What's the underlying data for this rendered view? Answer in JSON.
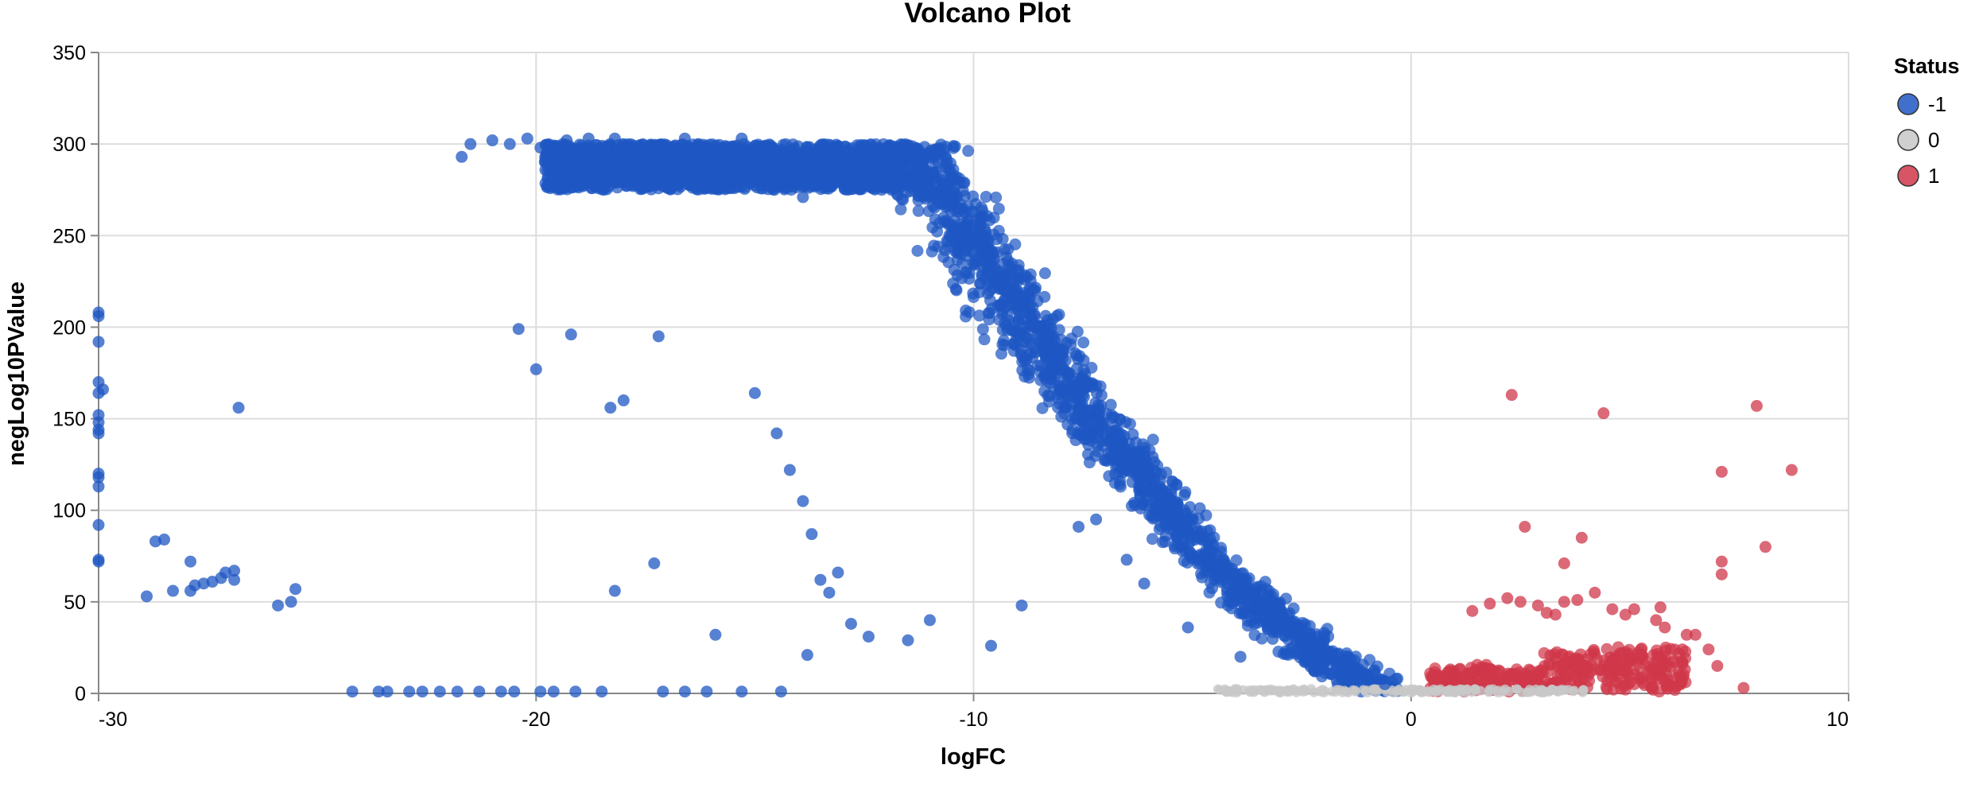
{
  "chart_data": {
    "type": "scatter",
    "title": "Volcano Plot",
    "xlabel": "logFC",
    "ylabel": "negLog10PValue",
    "xlim": [
      -30,
      10
    ],
    "ylim": [
      0,
      350
    ],
    "x_ticks": [
      "-30",
      "-20",
      "-10",
      "0",
      "10"
    ],
    "y_ticks": [
      "0",
      "50",
      "100",
      "150",
      "200",
      "250",
      "300",
      "350"
    ],
    "grid": true,
    "legend": {
      "title": "Status",
      "placement": "top-right",
      "entries": [
        {
          "label": "-1",
          "color": "#1f57c3"
        },
        {
          "label": "0",
          "color": "#c8c8c8"
        },
        {
          "label": "1",
          "color": "#d0374a"
        }
      ]
    },
    "series": [
      {
        "name": "-1",
        "color": "#1f57c3",
        "points": [
          [
            -30,
            208
          ],
          [
            -30,
            206
          ],
          [
            -30,
            192
          ],
          [
            -30,
            170
          ],
          [
            -29.9,
            166
          ],
          [
            -30,
            164
          ],
          [
            -30,
            152
          ],
          [
            -30,
            148
          ],
          [
            -30,
            144
          ],
          [
            -30,
            142
          ],
          [
            -30,
            120
          ],
          [
            -30,
            118
          ],
          [
            -30,
            113
          ],
          [
            -30,
            92
          ],
          [
            -30,
            73
          ],
          [
            -30,
            72
          ],
          [
            -26.8,
            156
          ],
          [
            -28.7,
            83
          ],
          [
            -28.5,
            84
          ],
          [
            -27.9,
            72
          ],
          [
            -28.9,
            53
          ],
          [
            -28.3,
            56
          ],
          [
            -27.9,
            56
          ],
          [
            -27.8,
            59
          ],
          [
            -27.6,
            60
          ],
          [
            -27.4,
            61
          ],
          [
            -27.2,
            63
          ],
          [
            -27.1,
            66
          ],
          [
            -26.9,
            67
          ],
          [
            -26.9,
            62
          ],
          [
            -25.9,
            48
          ],
          [
            -25.6,
            50
          ],
          [
            -25.5,
            57
          ],
          [
            -24.2,
            1
          ],
          [
            -23.6,
            1
          ],
          [
            -23.4,
            1
          ],
          [
            -22.9,
            1
          ],
          [
            -22.6,
            1
          ],
          [
            -22.2,
            1
          ],
          [
            -21.8,
            1
          ],
          [
            -21.3,
            1
          ],
          [
            -20.8,
            1
          ],
          [
            -20.5,
            1
          ],
          [
            -19.9,
            1
          ],
          [
            -19.6,
            1
          ],
          [
            -19.1,
            1
          ],
          [
            -18.5,
            1
          ],
          [
            -17.1,
            1
          ],
          [
            -16.6,
            1
          ],
          [
            -16.1,
            1
          ],
          [
            -15.3,
            1
          ],
          [
            -18.2,
            56
          ],
          [
            -17.3,
            71
          ],
          [
            -15.9,
            32
          ],
          [
            -14.4,
            1
          ],
          [
            -21.7,
            293
          ],
          [
            -21.5,
            300
          ],
          [
            -21.0,
            302
          ],
          [
            -20.6,
            300
          ],
          [
            -20.2,
            303
          ],
          [
            -19.9,
            298
          ],
          [
            -19.6,
            290
          ],
          [
            -19.3,
            302
          ],
          [
            -18.8,
            303
          ],
          [
            -18.2,
            303
          ],
          [
            -17.4,
            298
          ],
          [
            -16.6,
            303
          ],
          [
            -16.2,
            295
          ],
          [
            -15.3,
            303
          ],
          [
            -15.2,
            290
          ],
          [
            -13.9,
            271
          ],
          [
            -20.4,
            199
          ],
          [
            -20.0,
            177
          ],
          [
            -19.2,
            196
          ],
          [
            -18.3,
            156
          ],
          [
            -18.0,
            160
          ],
          [
            -17.2,
            195
          ],
          [
            -15.0,
            164
          ],
          [
            -14.5,
            142
          ],
          [
            -14.2,
            122
          ],
          [
            -13.9,
            105
          ],
          [
            -13.7,
            87
          ],
          [
            -13.5,
            62
          ],
          [
            -13.3,
            55
          ],
          [
            -13.1,
            66
          ],
          [
            -12.8,
            38
          ],
          [
            -13.8,
            21
          ],
          [
            -12.4,
            31
          ],
          [
            -11.5,
            29
          ],
          [
            -11.0,
            40
          ],
          [
            -9.6,
            26
          ],
          [
            -8.9,
            48
          ],
          [
            -7.6,
            91
          ],
          [
            -7.2,
            95
          ],
          [
            -6.5,
            73
          ],
          [
            -6.1,
            60
          ],
          [
            -5.1,
            36
          ],
          [
            -3.9,
            20
          ],
          [
            -2.2,
            12
          ],
          [
            -1.6,
            9
          ],
          [
            -0.6,
            5
          ]
        ]
      },
      {
        "name": "1",
        "color": "#d0374a",
        "points": [
          [
            2.3,
            163
          ],
          [
            4.4,
            153
          ],
          [
            7.9,
            157
          ],
          [
            7.1,
            121
          ],
          [
            8.7,
            122
          ],
          [
            2.6,
            91
          ],
          [
            3.5,
            71
          ],
          [
            3.9,
            85
          ],
          [
            7.1,
            72
          ],
          [
            7.1,
            65
          ],
          [
            8.1,
            80
          ],
          [
            1.4,
            45
          ],
          [
            1.8,
            49
          ],
          [
            2.2,
            52
          ],
          [
            2.5,
            50
          ],
          [
            2.9,
            48
          ],
          [
            3.1,
            44
          ],
          [
            3.3,
            43
          ],
          [
            3.5,
            50
          ],
          [
            3.8,
            51
          ],
          [
            4.2,
            55
          ],
          [
            4.6,
            46
          ],
          [
            4.9,
            43
          ],
          [
            5.1,
            46
          ],
          [
            5.7,
            47
          ],
          [
            5.6,
            40
          ],
          [
            5.8,
            36
          ],
          [
            6.3,
            32
          ],
          [
            6.5,
            32
          ],
          [
            5.8,
            20
          ],
          [
            6.2,
            24
          ],
          [
            6.8,
            24
          ],
          [
            7.0,
            15
          ],
          [
            7.6,
            3
          ],
          [
            1.0,
            10
          ],
          [
            1.6,
            14
          ]
        ]
      },
      {
        "name": "0",
        "color": "#c8c8c8",
        "points": [
          [
            -4,
            1
          ],
          [
            -3,
            1
          ],
          [
            -2,
            1
          ],
          [
            -1,
            1
          ],
          [
            0,
            1
          ],
          [
            1,
            1
          ],
          [
            2,
            1
          ],
          [
            3,
            1
          ]
        ]
      }
    ]
  }
}
